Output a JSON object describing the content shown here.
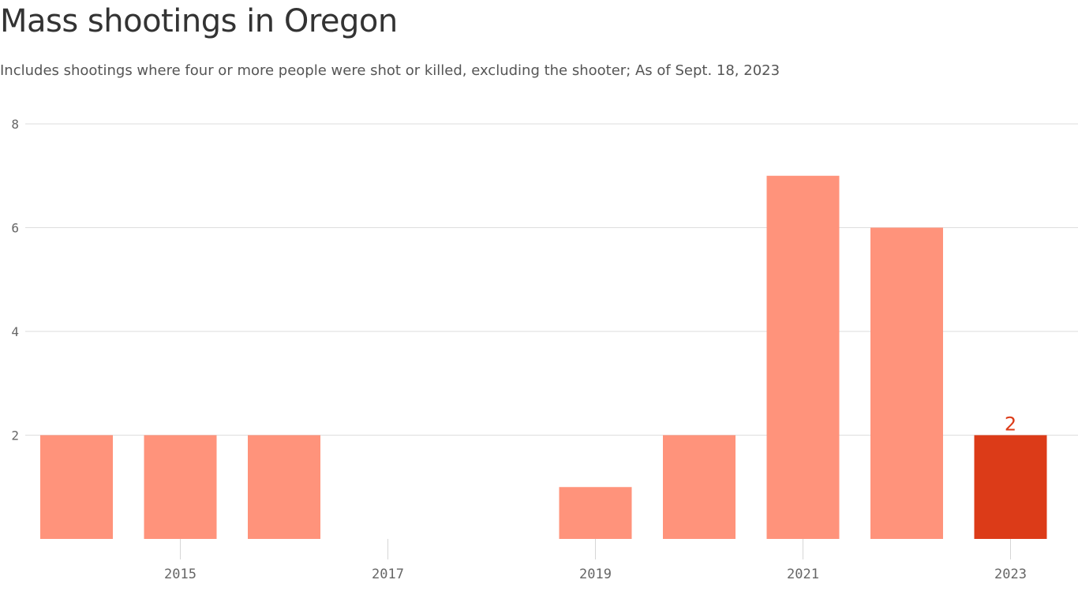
{
  "title": "Mass shootings in Oregon",
  "subtitle": "Includes shootings where four or more people were shot or killed, excluding the shooter; As of Sept. 18, 2023",
  "colors": {
    "bar": "#ff937b",
    "highlight": "#dc3b18",
    "grid": "#dedede",
    "label": "#dc3b18"
  },
  "chart_data": {
    "type": "bar",
    "x": [
      2014,
      2015,
      2016,
      2017,
      2018,
      2019,
      2020,
      2021,
      2022,
      2023
    ],
    "values": [
      2,
      2,
      2,
      0,
      0,
      1,
      2,
      7,
      6,
      2
    ],
    "highlight_x": 2023,
    "data_labels": [
      {
        "x": 2023,
        "text": "2"
      }
    ],
    "xticks": [
      "2015",
      "2017",
      "2019",
      "2021",
      "2023"
    ],
    "yticks": [
      "2",
      "4",
      "6",
      "8"
    ],
    "ylim": [
      0,
      8
    ],
    "grid": true,
    "xlabel": "",
    "ylabel": ""
  }
}
